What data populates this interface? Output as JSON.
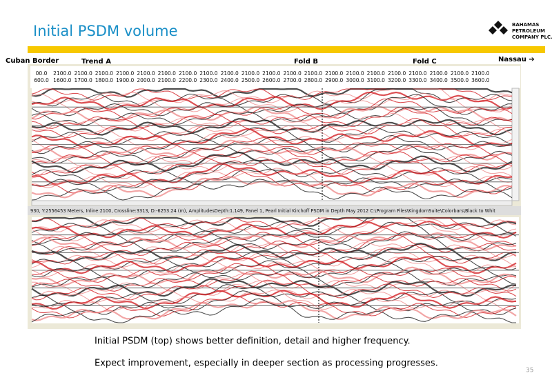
{
  "header": {
    "title": "Initial PSDM volume",
    "logo": [
      "BAHAMAS",
      "PETROLEUM",
      "COMPANY PLC."
    ]
  },
  "labels": [
    "Cuban Border",
    "Trend A",
    "Fold B",
    "Fold C",
    "Nassau ➔"
  ],
  "ruler": {
    "row1": [
      "00.0",
      "2100.0",
      "2100.0",
      "2100.0",
      "2100.0",
      "2100.0",
      "2100.0",
      "2100.0",
      "2100.0",
      "2100.0",
      "2100.0",
      "2100.0",
      "2100.0",
      "2100.0",
      "2100.0",
      "2100.0",
      "2100.0",
      "2100.0",
      "2100.0",
      "2100.0",
      "2100.0",
      "2100.0"
    ],
    "row2": [
      "600.0",
      "1600.0",
      "1700.0",
      "1800.0",
      "1900.0",
      "2000.0",
      "2100.0",
      "2200.0",
      "2300.0",
      "2400.0",
      "2500.0",
      "2600.0",
      "2700.0",
      "2800.0",
      "2900.0",
      "3000.0",
      "3100.0",
      "3200.0",
      "3300.0",
      "3400.0",
      "3500.0",
      "3600.0"
    ]
  },
  "status_bar": "930, Y:2556453 Meters,  Inline:2100, Crossline:3313,  D:-6253.24 (m), AmplitudesDepth:1.149, Panel 1,  Pearl Initial Kirchoff PSDM in Depth May 2012   C:\\Program Files\\KingdomSuite\\Colorbars\\Black to Whit",
  "captions": [
    "Initial PSDM (top) shows better definition, detail and higher frequency.",
    "Expect improvement, especially in deeper section as processing progresses."
  ],
  "page_number": "35"
}
